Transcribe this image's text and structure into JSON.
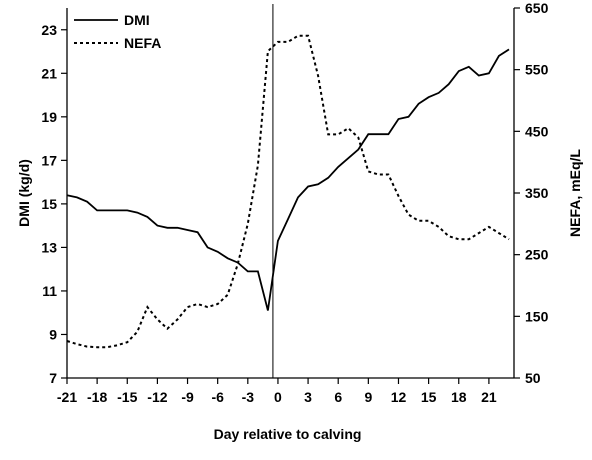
{
  "chart_data": {
    "type": "line",
    "xlabel": "Day relative to calving",
    "ylabel_left": "DMI (kg/d)",
    "ylabel_right": "NEFA, mEq/L",
    "xlim": [
      -21,
      23.5
    ],
    "ylim_left": [
      7,
      24
    ],
    "ylim_right": [
      50,
      650
    ],
    "x_ticks": [
      "-21",
      "-18",
      "-15",
      "-12",
      "-9",
      "-6",
      "-3",
      "0",
      "3",
      "6",
      "9",
      "12",
      "15",
      "18",
      "21"
    ],
    "y_left_ticks": [
      "7",
      "9",
      "11",
      "13",
      "15",
      "17",
      "19",
      "21",
      "23"
    ],
    "y_right_ticks": [
      "50",
      "150",
      "250",
      "350",
      "450",
      "550",
      "650"
    ],
    "reference_line_x": -0.5,
    "grid": false,
    "legend_position": "top-left",
    "series": [
      {
        "name": "DMI",
        "axis": "left",
        "style": "solid",
        "x": [
          -21,
          -20,
          -19,
          -18,
          -17,
          -16,
          -15,
          -14,
          -13,
          -12,
          -11,
          -10,
          -9,
          -8,
          -7,
          -6,
          -5,
          -4,
          -3,
          -2,
          -1,
          0,
          1,
          2,
          3,
          4,
          5,
          6,
          7,
          8,
          9,
          10,
          11,
          12,
          13,
          14,
          15,
          16,
          17,
          18,
          19,
          20,
          21,
          22,
          23
        ],
        "values": [
          15.4,
          15.3,
          15.1,
          14.7,
          14.7,
          14.7,
          14.7,
          14.6,
          14.4,
          14.0,
          13.9,
          13.9,
          13.8,
          13.7,
          13.0,
          12.8,
          12.5,
          12.3,
          11.9,
          11.9,
          10.1,
          13.3,
          14.3,
          15.3,
          15.8,
          15.9,
          16.2,
          16.7,
          17.1,
          17.5,
          18.2,
          18.2,
          18.2,
          18.9,
          19.0,
          19.6,
          19.9,
          20.1,
          20.5,
          21.1,
          21.3,
          20.9,
          21.0,
          21.8,
          22.1
        ]
      },
      {
        "name": "NEFA",
        "axis": "right",
        "style": "dotted",
        "x": [
          -21,
          -20,
          -19,
          -18,
          -17,
          -16,
          -15,
          -14,
          -13,
          -12,
          -11,
          -10,
          -9,
          -8,
          -7,
          -6,
          -5,
          -4,
          -3,
          -2,
          -1,
          0,
          1,
          2,
          3,
          4,
          5,
          6,
          7,
          8,
          9,
          10,
          11,
          12,
          13,
          14,
          15,
          16,
          17,
          18,
          19,
          20,
          21,
          22,
          23
        ],
        "values": [
          110,
          105,
          101,
          100,
          100,
          103,
          108,
          125,
          165,
          145,
          130,
          145,
          165,
          170,
          165,
          170,
          185,
          235,
          300,
          395,
          580,
          595,
          595,
          605,
          605,
          540,
          445,
          445,
          455,
          440,
          385,
          380,
          380,
          345,
          315,
          305,
          305,
          295,
          280,
          275,
          275,
          285,
          295,
          285,
          275
        ]
      }
    ]
  }
}
